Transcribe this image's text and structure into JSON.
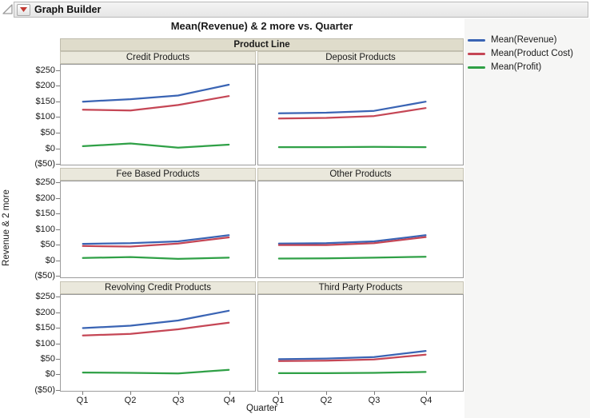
{
  "window": {
    "outline_title": "Graph Builder"
  },
  "chart": {
    "title": "Mean(Revenue) & 2 more vs. Quarter",
    "group_header": "Product Line",
    "x_title": "Quarter",
    "y_title": "Revenue & 2 more"
  },
  "legend": {
    "items": [
      {
        "label": "Mean(Revenue)",
        "color": "#3A64B4"
      },
      {
        "label": "Mean(Product Cost)",
        "color": "#C54655"
      },
      {
        "label": "Mean(Profit)",
        "color": "#2FA046"
      }
    ]
  },
  "chart_data": {
    "type": "line",
    "title": "Mean(Revenue) & 2 more vs. Quarter",
    "xlabel": "Quarter",
    "ylabel": "Revenue & 2 more",
    "trellis_group": "Product Line",
    "trellis_layout": {
      "rows": 3,
      "cols": 2
    },
    "x_categories": [
      "Q1",
      "Q2",
      "Q3",
      "Q4"
    ],
    "y_tick_labels": [
      "$250",
      "$200",
      "$150",
      "$100",
      "$50",
      "$0",
      "($50)"
    ],
    "y_tick_values": [
      250,
      200,
      150,
      100,
      50,
      0,
      -50
    ],
    "ylim": [
      -50,
      250
    ],
    "grid": false,
    "legend_position": "right",
    "series_names": [
      "Mean(Revenue)",
      "Mean(Product Cost)",
      "Mean(Profit)"
    ],
    "series_colors": [
      "#3A64B4",
      "#C54655",
      "#2FA046"
    ],
    "panels": [
      {
        "label": "Credit Products",
        "series": [
          {
            "name": "Mean(Revenue)",
            "values": [
              150,
              158,
              170,
              205
            ]
          },
          {
            "name": "Mean(Product Cost)",
            "values": [
              124,
              121,
              139,
              168
            ]
          },
          {
            "name": "Mean(Profit)",
            "values": [
              5,
              14,
              0,
              10
            ]
          }
        ]
      },
      {
        "label": "Deposit Products",
        "series": [
          {
            "name": "Mean(Revenue)",
            "values": [
              112,
              114,
              120,
              150
            ]
          },
          {
            "name": "Mean(Product Cost)",
            "values": [
              95,
              97,
              103,
              129
            ]
          },
          {
            "name": "Mean(Profit)",
            "values": [
              2,
              2,
              3,
              2
            ]
          }
        ]
      },
      {
        "label": "Fee Based Products",
        "series": [
          {
            "name": "Mean(Revenue)",
            "values": [
              52,
              54,
              60,
              80
            ]
          },
          {
            "name": "Mean(Product Cost)",
            "values": [
              45,
              43,
              53,
              73
            ]
          },
          {
            "name": "Mean(Profit)",
            "values": [
              6,
              9,
              3,
              7
            ]
          }
        ]
      },
      {
        "label": "Other Products",
        "series": [
          {
            "name": "Mean(Revenue)",
            "values": [
              53,
              54,
              60,
              80
            ]
          },
          {
            "name": "Mean(Product Cost)",
            "values": [
              48,
              48,
              54,
              74
            ]
          },
          {
            "name": "Mean(Profit)",
            "values": [
              4,
              5,
              7,
              10
            ]
          }
        ]
      },
      {
        "label": "Revolving Credit Products",
        "series": [
          {
            "name": "Mean(Revenue)",
            "values": [
              150,
              158,
              175,
              207
            ]
          },
          {
            "name": "Mean(Product Cost)",
            "values": [
              126,
              131,
              146,
              168
            ]
          },
          {
            "name": "Mean(Profit)",
            "values": [
              4,
              3,
              1,
              13
            ]
          }
        ]
      },
      {
        "label": "Third Party Products",
        "series": [
          {
            "name": "Mean(Revenue)",
            "values": [
              48,
              50,
              55,
              75
            ]
          },
          {
            "name": "Mean(Product Cost)",
            "values": [
              42,
              43,
              47,
              63
            ]
          },
          {
            "name": "Mean(Profit)",
            "values": [
              2,
              2,
              3,
              6
            ]
          }
        ]
      }
    ]
  },
  "colors": {
    "group_header_bg": "#DFDCCB",
    "panel_header_bg": "#EAE8DC",
    "panel_border": "#9C9C9C",
    "right_background": "#F6F6F5"
  }
}
